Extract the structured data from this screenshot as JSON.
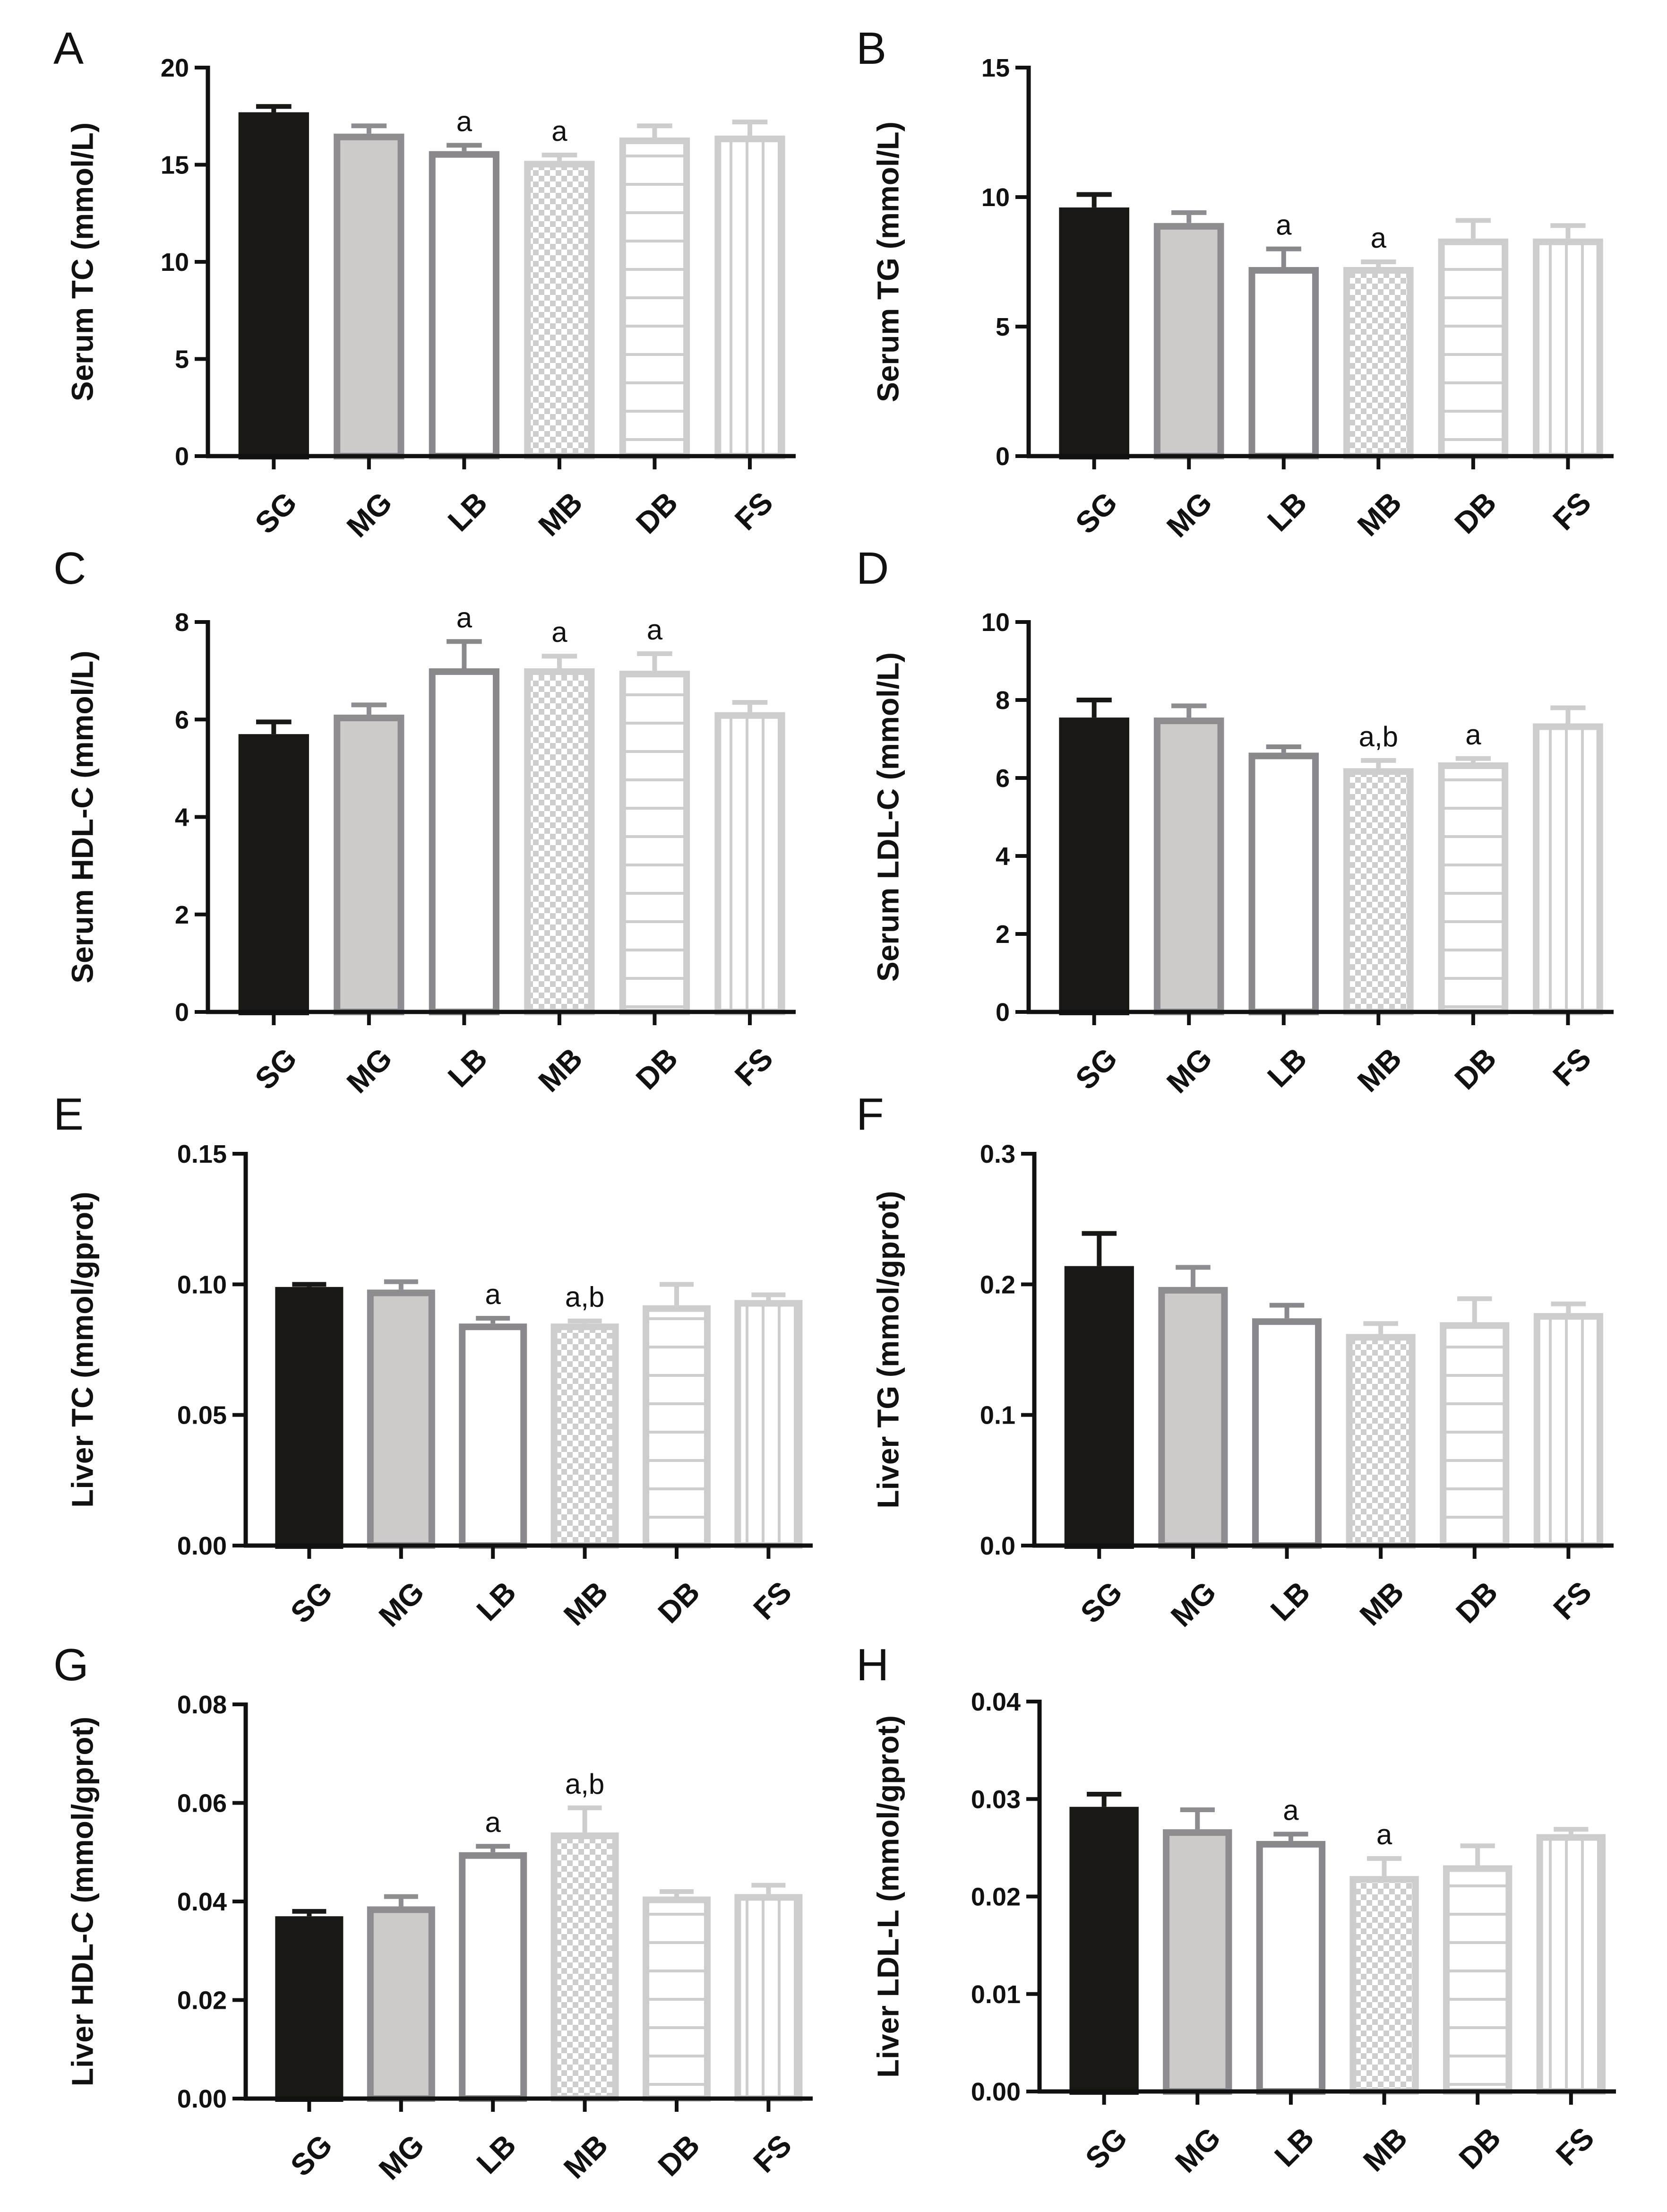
{
  "colors": {
    "SG": "#1a1814",
    "MG_fill": "#cfcaca",
    "MG_stroke": "#8e8b91",
    "LB_stroke": "#8a878d",
    "light": "#cdcdcd"
  },
  "chart_data": [
    {
      "type": "bar",
      "panel": "A",
      "ylabel": "Serum TC (mmol/L)",
      "ylim": [
        0,
        20
      ],
      "yticks": [
        "0",
        "5",
        "10",
        "15",
        "20"
      ],
      "ytick_values": [
        0,
        5,
        10,
        15,
        20
      ],
      "categories": [
        "SG",
        "MG",
        "LB",
        "MB",
        "DB",
        "FS"
      ],
      "values": [
        17.7,
        16.6,
        15.7,
        15.2,
        16.4,
        16.5
      ],
      "errors": [
        0.3,
        0.4,
        0.3,
        0.3,
        0.6,
        0.7
      ],
      "annotations": [
        "",
        "",
        "a",
        "a",
        "",
        ""
      ]
    },
    {
      "type": "bar",
      "panel": "B",
      "ylabel": "Serum TG (mmol/L)",
      "ylim": [
        0,
        15
      ],
      "yticks": [
        "0",
        "5",
        "10",
        "15"
      ],
      "ytick_values": [
        0,
        5,
        10,
        15
      ],
      "categories": [
        "SG",
        "MG",
        "LB",
        "MB",
        "DB",
        "FS"
      ],
      "values": [
        9.6,
        9.0,
        7.3,
        7.3,
        8.4,
        8.4
      ],
      "errors": [
        0.5,
        0.4,
        0.7,
        0.2,
        0.7,
        0.5
      ],
      "annotations": [
        "",
        "",
        "a",
        "a",
        "",
        ""
      ]
    },
    {
      "type": "bar",
      "panel": "C",
      "ylabel": "Serum HDL-C (mmol/L)",
      "ylim": [
        0,
        8
      ],
      "yticks": [
        "0",
        "2",
        "4",
        "6",
        "8"
      ],
      "ytick_values": [
        0,
        2,
        4,
        6,
        8
      ],
      "categories": [
        "SG",
        "MG",
        "LB",
        "MB",
        "DB",
        "FS"
      ],
      "values": [
        5.7,
        6.1,
        7.05,
        7.05,
        7.0,
        6.15
      ],
      "errors": [
        0.25,
        0.2,
        0.55,
        0.25,
        0.35,
        0.2
      ],
      "annotations": [
        "",
        "",
        "a",
        "a",
        "a",
        ""
      ]
    },
    {
      "type": "bar",
      "panel": "D",
      "ylabel": "Serum LDL-C (mmol/L)",
      "ylim": [
        0,
        10
      ],
      "yticks": [
        "0",
        "2",
        "4",
        "6",
        "8",
        "10"
      ],
      "ytick_values": [
        0,
        2,
        4,
        6,
        8,
        10
      ],
      "categories": [
        "SG",
        "MG",
        "LB",
        "MB",
        "DB",
        "FS"
      ],
      "values": [
        7.55,
        7.55,
        6.65,
        6.25,
        6.4,
        7.4
      ],
      "errors": [
        0.45,
        0.3,
        0.15,
        0.2,
        0.1,
        0.4
      ],
      "annotations": [
        "",
        "",
        "",
        "a,b",
        "a",
        ""
      ]
    },
    {
      "type": "bar",
      "panel": "E",
      "ylabel": "Liver TC (mmol/gprot)",
      "ylim": [
        0,
        0.15
      ],
      "yticks": [
        "0.00",
        "0.05",
        "0.10",
        "0.15"
      ],
      "ytick_values": [
        0,
        0.05,
        0.1,
        0.15
      ],
      "categories": [
        "SG",
        "MG",
        "LB",
        "MB",
        "DB",
        "FS"
      ],
      "values": [
        0.099,
        0.098,
        0.085,
        0.085,
        0.092,
        0.094
      ],
      "errors": [
        0.001,
        0.003,
        0.002,
        0.001,
        0.008,
        0.002
      ],
      "annotations": [
        "",
        "",
        "a",
        "a,b",
        "",
        ""
      ]
    },
    {
      "type": "bar",
      "panel": "F",
      "ylabel": "Liver TG (mmol/gprot)",
      "ylim": [
        0,
        0.3
      ],
      "yticks": [
        "0.0",
        "0.1",
        "0.2",
        "0.3"
      ],
      "ytick_values": [
        0,
        0.1,
        0.2,
        0.3
      ],
      "categories": [
        "SG",
        "MG",
        "LB",
        "MB",
        "DB",
        "FS"
      ],
      "values": [
        0.214,
        0.198,
        0.174,
        0.162,
        0.171,
        0.178
      ],
      "errors": [
        0.025,
        0.015,
        0.01,
        0.008,
        0.018,
        0.007
      ],
      "annotations": [
        "",
        "",
        "",
        "",
        "",
        ""
      ]
    },
    {
      "type": "bar",
      "panel": "G",
      "ylabel": "Liver HDL-C (mmol/gprot)",
      "ylim": [
        0,
        0.08
      ],
      "yticks": [
        "0.00",
        "0.02",
        "0.04",
        "0.06",
        "0.08"
      ],
      "ytick_values": [
        0,
        0.02,
        0.04,
        0.06,
        0.08
      ],
      "categories": [
        "SG",
        "MG",
        "LB",
        "MB",
        "DB",
        "FS"
      ],
      "values": [
        0.037,
        0.039,
        0.05,
        0.054,
        0.041,
        0.0415
      ],
      "errors": [
        0.001,
        0.002,
        0.0012,
        0.005,
        0.001,
        0.0018
      ],
      "annotations": [
        "",
        "",
        "a",
        "a,b",
        "",
        ""
      ]
    },
    {
      "type": "bar",
      "panel": "H",
      "ylabel": "Liver LDL-L (mmol/gprot)",
      "ylim": [
        0,
        0.04
      ],
      "yticks": [
        "0.00",
        "0.01",
        "0.02",
        "0.03",
        "0.04"
      ],
      "ytick_values": [
        0,
        0.01,
        0.02,
        0.03,
        0.04
      ],
      "categories": [
        "SG",
        "MG",
        "LB",
        "MB",
        "DB",
        "FS"
      ],
      "values": [
        0.0292,
        0.0269,
        0.0257,
        0.0221,
        0.0232,
        0.0264
      ],
      "errors": [
        0.0013,
        0.002,
        0.0007,
        0.0018,
        0.002,
        0.0005
      ],
      "annotations": [
        "",
        "",
        "a",
        "a",
        "",
        ""
      ]
    }
  ]
}
